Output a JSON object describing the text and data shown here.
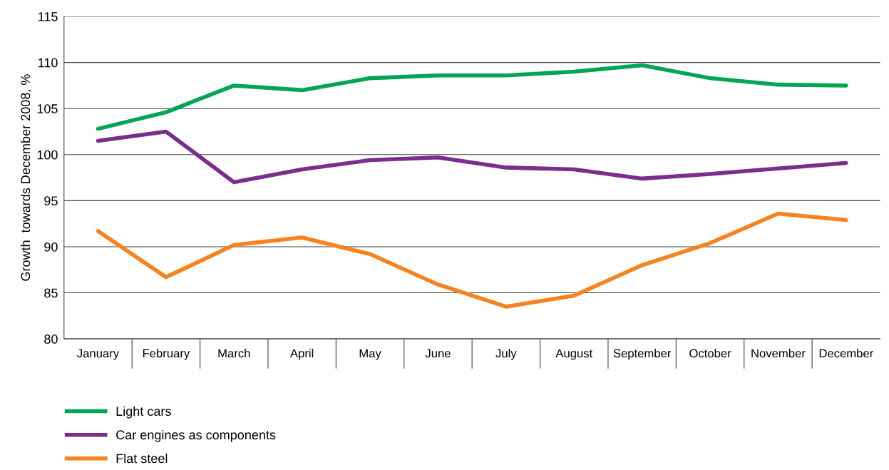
{
  "chart_data": {
    "type": "line",
    "ylabel": "Growth  towards December 2008, %",
    "categories": [
      "January",
      "February",
      "March",
      "April",
      "May",
      "June",
      "July",
      "August",
      "September",
      "October",
      "November",
      "December"
    ],
    "series": [
      {
        "name": "Light cars",
        "color": "#00a651",
        "values": [
          102.8,
          104.6,
          107.5,
          107.0,
          108.3,
          108.6,
          108.6,
          109.0,
          109.7,
          108.3,
          107.6,
          107.5
        ]
      },
      {
        "name": "Car engines as components",
        "color": "#7b2d8e",
        "values": [
          101.5,
          102.5,
          97.0,
          98.4,
          99.4,
          99.7,
          98.6,
          98.4,
          97.4,
          97.9,
          98.5,
          99.1
        ]
      },
      {
        "name": "Flat steel",
        "color": "#f7821e",
        "values": [
          91.7,
          86.7,
          90.2,
          91.0,
          89.2,
          85.9,
          83.5,
          84.7,
          88.0,
          90.4,
          93.6,
          92.9
        ]
      }
    ],
    "ylim": [
      80,
      115
    ],
    "yticks": [
      80,
      85,
      90,
      95,
      100,
      105,
      110,
      115
    ],
    "grid": "y",
    "legend": "bottom left",
    "marker": "none",
    "line_style": "solid"
  }
}
